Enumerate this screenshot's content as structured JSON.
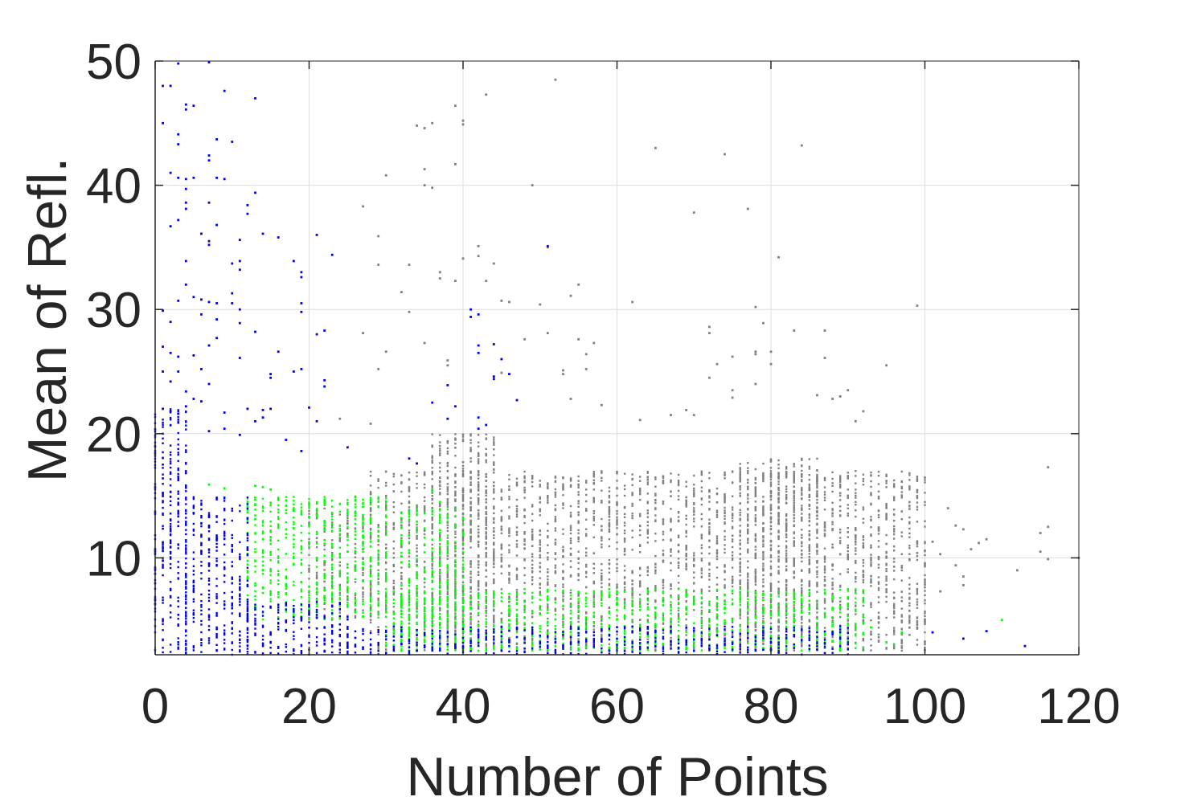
{
  "chart_data": {
    "type": "scatter",
    "title": "",
    "xlabel": "Number of Points",
    "ylabel": "Mean of Refl.",
    "xlim": [
      0,
      120
    ],
    "ylim": [
      2.2,
      50
    ],
    "xticks": [
      0,
      20,
      40,
      60,
      80,
      100,
      120
    ],
    "yticks": [
      10,
      20,
      30,
      40,
      50
    ],
    "grid": true,
    "legend": "none",
    "series": [
      {
        "color": "#808080",
        "density_bands": [
          {
            "x": [
              28,
              100
            ],
            "y": [
              2.5,
              17
            ]
          },
          {
            "x": [
              36,
              44
            ],
            "y": [
              2.5,
              20
            ]
          },
          {
            "x": [
              76,
              86
            ],
            "y": [
              2.5,
              18
            ]
          },
          {
            "x": [
              20,
              28
            ],
            "y": [
              5,
              14
            ]
          }
        ],
        "points": [
          {
            "x": 52,
            "y": 48.5
          },
          {
            "x": 43,
            "y": 47.3
          },
          {
            "x": 39,
            "y": 46.4
          },
          {
            "x": 40,
            "y": 45.2
          },
          {
            "x": 40,
            "y": 44.9
          },
          {
            "x": 36,
            "y": 45.0
          },
          {
            "x": 34,
            "y": 44.8
          },
          {
            "x": 35,
            "y": 44.6
          },
          {
            "x": 84,
            "y": 43.2
          },
          {
            "x": 65,
            "y": 43.0
          },
          {
            "x": 74,
            "y": 42.5
          },
          {
            "x": 30,
            "y": 40.8
          },
          {
            "x": 49,
            "y": 40.0
          },
          {
            "x": 35,
            "y": 41.3
          },
          {
            "x": 35,
            "y": 40.0
          },
          {
            "x": 36,
            "y": 39.8
          },
          {
            "x": 39,
            "y": 41.7
          },
          {
            "x": 27,
            "y": 38.3
          },
          {
            "x": 70,
            "y": 37.8
          },
          {
            "x": 77,
            "y": 38.1
          },
          {
            "x": 29,
            "y": 35.9
          },
          {
            "x": 42,
            "y": 35.1
          },
          {
            "x": 51,
            "y": 35.0
          },
          {
            "x": 42,
            "y": 34.3
          },
          {
            "x": 40,
            "y": 34.1
          },
          {
            "x": 44,
            "y": 33.7
          },
          {
            "x": 33,
            "y": 33.6
          },
          {
            "x": 29,
            "y": 33.6
          },
          {
            "x": 81,
            "y": 34.2
          },
          {
            "x": 37,
            "y": 33.0
          },
          {
            "x": 37,
            "y": 32.5
          },
          {
            "x": 43,
            "y": 32.3
          },
          {
            "x": 39,
            "y": 32.3
          },
          {
            "x": 55,
            "y": 32.0
          },
          {
            "x": 32,
            "y": 31.4
          },
          {
            "x": 54,
            "y": 31.1
          },
          {
            "x": 45,
            "y": 30.7
          },
          {
            "x": 46,
            "y": 30.6
          },
          {
            "x": 62,
            "y": 30.6
          },
          {
            "x": 99,
            "y": 30.3
          },
          {
            "x": 50,
            "y": 30.4
          },
          {
            "x": 78,
            "y": 30.2
          },
          {
            "x": 33,
            "y": 29.8
          },
          {
            "x": 79,
            "y": 28.9
          },
          {
            "x": 72,
            "y": 28.6
          },
          {
            "x": 72,
            "y": 28.1
          },
          {
            "x": 83,
            "y": 28.3
          },
          {
            "x": 87,
            "y": 28.3
          },
          {
            "x": 27,
            "y": 28.1
          },
          {
            "x": 51,
            "y": 28.1
          },
          {
            "x": 48,
            "y": 27.6
          },
          {
            "x": 55,
            "y": 27.6
          },
          {
            "x": 35,
            "y": 27.3
          },
          {
            "x": 57,
            "y": 27.3
          },
          {
            "x": 56,
            "y": 26.4
          },
          {
            "x": 75,
            "y": 26.2
          },
          {
            "x": 78,
            "y": 26.6
          },
          {
            "x": 78,
            "y": 26.4
          },
          {
            "x": 80,
            "y": 26.6
          },
          {
            "x": 87,
            "y": 26.1
          },
          {
            "x": 29,
            "y": 25.2
          },
          {
            "x": 30,
            "y": 26.6
          },
          {
            "x": 73,
            "y": 25.6
          },
          {
            "x": 80,
            "y": 25.6
          },
          {
            "x": 95,
            "y": 25.5
          },
          {
            "x": 38,
            "y": 25.9
          },
          {
            "x": 38,
            "y": 25.5
          },
          {
            "x": 53,
            "y": 25.1
          },
          {
            "x": 53,
            "y": 24.8
          },
          {
            "x": 56,
            "y": 25.2
          },
          {
            "x": 45,
            "y": 24.9
          },
          {
            "x": 72,
            "y": 24.5
          },
          {
            "x": 78,
            "y": 24.0
          },
          {
            "x": 75,
            "y": 23.5
          },
          {
            "x": 75,
            "y": 22.9
          },
          {
            "x": 90,
            "y": 23.5
          },
          {
            "x": 86,
            "y": 23.1
          },
          {
            "x": 88,
            "y": 22.8
          },
          {
            "x": 89,
            "y": 23.0
          },
          {
            "x": 54,
            "y": 22.8
          },
          {
            "x": 58,
            "y": 22.3
          },
          {
            "x": 67,
            "y": 21.5
          },
          {
            "x": 69,
            "y": 21.9
          },
          {
            "x": 70,
            "y": 21.5
          },
          {
            "x": 92,
            "y": 21.8
          },
          {
            "x": 91,
            "y": 21.0
          },
          {
            "x": 63,
            "y": 21.1
          },
          {
            "x": 24,
            "y": 21.2
          },
          {
            "x": 28,
            "y": 20.8
          },
          {
            "x": 103,
            "y": 14.0
          },
          {
            "x": 104,
            "y": 12.6
          },
          {
            "x": 105,
            "y": 12.3
          },
          {
            "x": 106,
            "y": 10.7
          },
          {
            "x": 107,
            "y": 11.2
          },
          {
            "x": 104,
            "y": 9.4
          },
          {
            "x": 105,
            "y": 8.5
          },
          {
            "x": 105,
            "y": 7.8
          },
          {
            "x": 102,
            "y": 7.3
          },
          {
            "x": 112,
            "y": 9.0
          },
          {
            "x": 115,
            "y": 12.0
          },
          {
            "x": 115,
            "y": 10.5
          },
          {
            "x": 116,
            "y": 12.5
          },
          {
            "x": 116,
            "y": 9.9
          },
          {
            "x": 116,
            "y": 17.3
          },
          {
            "x": 120,
            "y": 10.0
          },
          {
            "x": 101,
            "y": 11.3
          },
          {
            "x": 102,
            "y": 10.3
          },
          {
            "x": 108,
            "y": 11.5
          }
        ]
      },
      {
        "color": "#00ff00",
        "density_bands": [
          {
            "x": [
              30,
              92
            ],
            "y": [
              2.5,
              7.5
            ]
          },
          {
            "x": [
              32,
              40
            ],
            "y": [
              2.5,
              14
            ]
          },
          {
            "x": [
              12,
              30
            ],
            "y": [
              5,
              15
            ]
          }
        ],
        "points": [
          {
            "x": 13,
            "y": 15.8
          },
          {
            "x": 14,
            "y": 15.7
          },
          {
            "x": 15,
            "y": 15.5
          },
          {
            "x": 16,
            "y": 14.7
          },
          {
            "x": 18,
            "y": 13.8
          },
          {
            "x": 20,
            "y": 13.3
          },
          {
            "x": 22,
            "y": 12.6
          },
          {
            "x": 36,
            "y": 15.4
          },
          {
            "x": 37,
            "y": 14.5
          },
          {
            "x": 110,
            "y": 5.0
          },
          {
            "x": 96,
            "y": 3.0
          },
          {
            "x": 95,
            "y": 3.2
          },
          {
            "x": 93,
            "y": 4.4
          },
          {
            "x": 97,
            "y": 4.0
          },
          {
            "x": 7,
            "y": 15.9
          },
          {
            "x": 9,
            "y": 15.6
          },
          {
            "x": 25,
            "y": 10.5
          },
          {
            "x": 27,
            "y": 9.2
          }
        ]
      },
      {
        "color": "#0000ee",
        "density_bands": [
          {
            "x": [
              4,
              12
            ],
            "y": [
              2.2,
              15
            ]
          },
          {
            "x": [
              12,
              25
            ],
            "y": [
              2.2,
              6.5
            ]
          },
          {
            "x": [
              25,
              90
            ],
            "y": [
              2.2,
              4.5
            ]
          },
          {
            "x": [
              0,
              4
            ],
            "y": [
              2.2,
              22
            ]
          }
        ],
        "points": [
          {
            "x": 3,
            "y": 49.8
          },
          {
            "x": 7,
            "y": 49.9
          },
          {
            "x": 1,
            "y": 48.0
          },
          {
            "x": 2,
            "y": 48.0
          },
          {
            "x": 9,
            "y": 47.6
          },
          {
            "x": 13,
            "y": 47.0
          },
          {
            "x": 4,
            "y": 46.5
          },
          {
            "x": 5,
            "y": 46.4
          },
          {
            "x": 4,
            "y": 46.1
          },
          {
            "x": 1,
            "y": 45.0
          },
          {
            "x": 3,
            "y": 44.1
          },
          {
            "x": 3,
            "y": 43.3
          },
          {
            "x": 8,
            "y": 43.7
          },
          {
            "x": 10,
            "y": 43.5
          },
          {
            "x": 7,
            "y": 42.4
          },
          {
            "x": 7,
            "y": 42.0
          },
          {
            "x": 2,
            "y": 41.0
          },
          {
            "x": 3,
            "y": 40.6
          },
          {
            "x": 4,
            "y": 40.5
          },
          {
            "x": 5,
            "y": 40.6
          },
          {
            "x": 8,
            "y": 40.6
          },
          {
            "x": 9,
            "y": 40.5
          },
          {
            "x": 4,
            "y": 39.7
          },
          {
            "x": 13,
            "y": 39.4
          },
          {
            "x": 4,
            "y": 38.6
          },
          {
            "x": 4,
            "y": 38.1
          },
          {
            "x": 7,
            "y": 38.6
          },
          {
            "x": 12,
            "y": 38.4
          },
          {
            "x": 12,
            "y": 37.7
          },
          {
            "x": 3,
            "y": 37.2
          },
          {
            "x": 2,
            "y": 36.7
          },
          {
            "x": 8,
            "y": 36.8
          },
          {
            "x": 6,
            "y": 36.1
          },
          {
            "x": 7,
            "y": 35.5
          },
          {
            "x": 7,
            "y": 35.2
          },
          {
            "x": 11,
            "y": 35.6
          },
          {
            "x": 14,
            "y": 36.1
          },
          {
            "x": 16,
            "y": 35.8
          },
          {
            "x": 21,
            "y": 36.0
          },
          {
            "x": 23,
            "y": 34.4
          },
          {
            "x": 4,
            "y": 33.9
          },
          {
            "x": 10,
            "y": 33.7
          },
          {
            "x": 11,
            "y": 33.2
          },
          {
            "x": 11,
            "y": 33.9
          },
          {
            "x": 18,
            "y": 33.9
          },
          {
            "x": 19,
            "y": 33.0
          },
          {
            "x": 19,
            "y": 32.6
          },
          {
            "x": 4,
            "y": 32.0
          },
          {
            "x": 5,
            "y": 31.0
          },
          {
            "x": 3,
            "y": 30.7
          },
          {
            "x": 6,
            "y": 30.8
          },
          {
            "x": 7,
            "y": 30.6
          },
          {
            "x": 8,
            "y": 30.5
          },
          {
            "x": 10,
            "y": 31.3
          },
          {
            "x": 10,
            "y": 30.5
          },
          {
            "x": 11,
            "y": 30.0
          },
          {
            "x": 19,
            "y": 30.5
          },
          {
            "x": 19,
            "y": 29.8
          },
          {
            "x": 1,
            "y": 29.9
          },
          {
            "x": 2,
            "y": 29.0
          },
          {
            "x": 6,
            "y": 29.6
          },
          {
            "x": 8,
            "y": 29.2
          },
          {
            "x": 11,
            "y": 28.9
          },
          {
            "x": 13,
            "y": 28.2
          },
          {
            "x": 21,
            "y": 28.0
          },
          {
            "x": 22,
            "y": 28.3
          },
          {
            "x": 7,
            "y": 27.1
          },
          {
            "x": 8,
            "y": 27.7
          },
          {
            "x": 1,
            "y": 27.0
          },
          {
            "x": 2,
            "y": 26.5
          },
          {
            "x": 3,
            "y": 26.2
          },
          {
            "x": 5,
            "y": 26.3
          },
          {
            "x": 11,
            "y": 26.1
          },
          {
            "x": 16,
            "y": 26.6
          },
          {
            "x": 15,
            "y": 24.8
          },
          {
            "x": 15,
            "y": 24.5
          },
          {
            "x": 18,
            "y": 25.0
          },
          {
            "x": 19,
            "y": 25.2
          },
          {
            "x": 1,
            "y": 25.0
          },
          {
            "x": 2,
            "y": 24.2
          },
          {
            "x": 3,
            "y": 25.0
          },
          {
            "x": 6,
            "y": 25.2
          },
          {
            "x": 4,
            "y": 23.4
          },
          {
            "x": 7,
            "y": 24.0
          },
          {
            "x": 22,
            "y": 24.3
          },
          {
            "x": 22,
            "y": 23.8
          },
          {
            "x": 5,
            "y": 22.8
          },
          {
            "x": 6,
            "y": 22.6
          },
          {
            "x": 9,
            "y": 21.7
          },
          {
            "x": 12,
            "y": 22.0
          },
          {
            "x": 14,
            "y": 21.9
          },
          {
            "x": 15,
            "y": 22.0
          },
          {
            "x": 20,
            "y": 22.1
          },
          {
            "x": 1,
            "y": 22.0
          },
          {
            "x": 2,
            "y": 21.8
          },
          {
            "x": 3,
            "y": 21.6
          },
          {
            "x": 4,
            "y": 22.2
          },
          {
            "x": 14,
            "y": 21.3
          },
          {
            "x": 13,
            "y": 21.0
          },
          {
            "x": 21,
            "y": 21.0
          },
          {
            "x": 7,
            "y": 20.2
          },
          {
            "x": 9,
            "y": 20.4
          },
          {
            "x": 11,
            "y": 19.9
          },
          {
            "x": 17,
            "y": 19.5
          },
          {
            "x": 19,
            "y": 18.6
          },
          {
            "x": 25,
            "y": 18.9
          },
          {
            "x": 38,
            "y": 21.2
          },
          {
            "x": 42,
            "y": 21.3
          },
          {
            "x": 43,
            "y": 20.7
          },
          {
            "x": 42,
            "y": 20.4
          },
          {
            "x": 41,
            "y": 30.0
          },
          {
            "x": 41,
            "y": 29.4
          },
          {
            "x": 42,
            "y": 29.6
          },
          {
            "x": 42,
            "y": 27.1
          },
          {
            "x": 42,
            "y": 26.5
          },
          {
            "x": 44,
            "y": 27.2
          },
          {
            "x": 45,
            "y": 26.0
          },
          {
            "x": 44,
            "y": 24.6
          },
          {
            "x": 44,
            "y": 24.4
          },
          {
            "x": 46,
            "y": 24.8
          },
          {
            "x": 36,
            "y": 22.5
          },
          {
            "x": 39,
            "y": 22.2
          },
          {
            "x": 47,
            "y": 22.7
          },
          {
            "x": 38,
            "y": 23.9
          },
          {
            "x": 51,
            "y": 35.1
          },
          {
            "x": 33,
            "y": 18.0
          },
          {
            "x": 34,
            "y": 17.6
          },
          {
            "x": 101,
            "y": 4.0
          },
          {
            "x": 105,
            "y": 3.5
          },
          {
            "x": 108,
            "y": 4.1
          },
          {
            "x": 113,
            "y": 2.9
          }
        ]
      }
    ]
  }
}
